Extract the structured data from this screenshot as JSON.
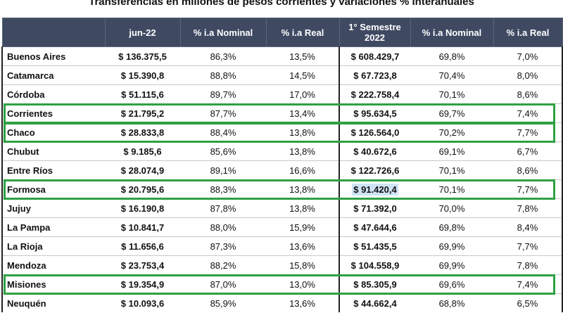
{
  "title": "Transferencias en millones de pesos corrientes y variaciones % interanuales",
  "headers": [
    "",
    "jun-22",
    "% i.a Nominal",
    "% i.a Real",
    "1° Semestre 2022",
    "% i.a Nominal",
    "% i.a Real"
  ],
  "rows": [
    {
      "provincia": "Buenos Aires",
      "jun22": "$ 136.375,5",
      "nom1": "86,3%",
      "real1": "13,5%",
      "sem": "$ 608.429,7",
      "nom2": "69,8%",
      "real2": "7,0%",
      "highlighted": false
    },
    {
      "provincia": "Catamarca",
      "jun22": "$ 15.390,8",
      "nom1": "88,8%",
      "real1": "14,5%",
      "sem": "$ 67.723,8",
      "nom2": "70,4%",
      "real2": "8,0%",
      "highlighted": false
    },
    {
      "provincia": "Córdoba",
      "jun22": "$ 51.115,6",
      "nom1": "89,7%",
      "real1": "17,0%",
      "sem": "$ 222.758,4",
      "nom2": "70,1%",
      "real2": "8,6%",
      "highlighted": false
    },
    {
      "provincia": "Corrientes",
      "jun22": "$ 21.795,2",
      "nom1": "87,7%",
      "real1": "13,4%",
      "sem": "$ 95.634,5",
      "nom2": "69,7%",
      "real2": "7,4%",
      "highlighted": true
    },
    {
      "provincia": "Chaco",
      "jun22": "$ 28.833,8",
      "nom1": "88,4%",
      "real1": "13,8%",
      "sem": "$ 126.564,0",
      "nom2": "70,2%",
      "real2": "7,7%",
      "highlighted": true
    },
    {
      "provincia": "Chubut",
      "jun22": "$ 9.185,6",
      "nom1": "85,6%",
      "real1": "13,8%",
      "sem": "$ 40.672,6",
      "nom2": "69,1%",
      "real2": "6,7%",
      "highlighted": false
    },
    {
      "provincia": "Entre Ríos",
      "jun22": "$ 28.074,9",
      "nom1": "89,1%",
      "real1": "16,6%",
      "sem": "$ 122.726,6",
      "nom2": "70,1%",
      "real2": "8,6%",
      "highlighted": false
    },
    {
      "provincia": "Formosa",
      "jun22": "$ 20.795,6",
      "nom1": "88,3%",
      "real1": "13,8%",
      "sem": "$ 91.420,4",
      "nom2": "70,1%",
      "real2": "7,7%",
      "highlighted": true
    },
    {
      "provincia": "Jujuy",
      "jun22": "$ 16.190,8",
      "nom1": "87,8%",
      "real1": "13,8%",
      "sem": "$ 71.392,0",
      "nom2": "70,0%",
      "real2": "7,8%",
      "highlighted": false
    },
    {
      "provincia": "La Pampa",
      "jun22": "$ 10.841,7",
      "nom1": "88,0%",
      "real1": "15,9%",
      "sem": "$ 47.644,6",
      "nom2": "69,8%",
      "real2": "8,4%",
      "highlighted": false
    },
    {
      "provincia": "La Rioja",
      "jun22": "$ 11.656,6",
      "nom1": "87,3%",
      "real1": "13,6%",
      "sem": "$ 51.435,5",
      "nom2": "69,9%",
      "real2": "7,7%",
      "highlighted": false
    },
    {
      "provincia": "Mendoza",
      "jun22": "$ 23.753,4",
      "nom1": "88,2%",
      "real1": "15,8%",
      "sem": "$ 104.558,9",
      "nom2": "69,9%",
      "real2": "7,8%",
      "highlighted": false
    },
    {
      "provincia": "Misiones",
      "jun22": "$ 19.354,9",
      "nom1": "87,0%",
      "real1": "13,0%",
      "sem": "$ 85.305,9",
      "nom2": "69,6%",
      "real2": "7,4%",
      "highlighted": true
    },
    {
      "provincia": "Neuquén",
      "jun22": "$ 10.093,6",
      "nom1": "85,9%",
      "real1": "13,6%",
      "sem": "$ 44.662,4",
      "nom2": "68,8%",
      "real2": "6,5%",
      "highlighted": false
    }
  ],
  "colors": {
    "header_bg": "#3f4a62",
    "highlight_border": "#2ea043",
    "selected_cell_bg": "#cfe3f5"
  }
}
